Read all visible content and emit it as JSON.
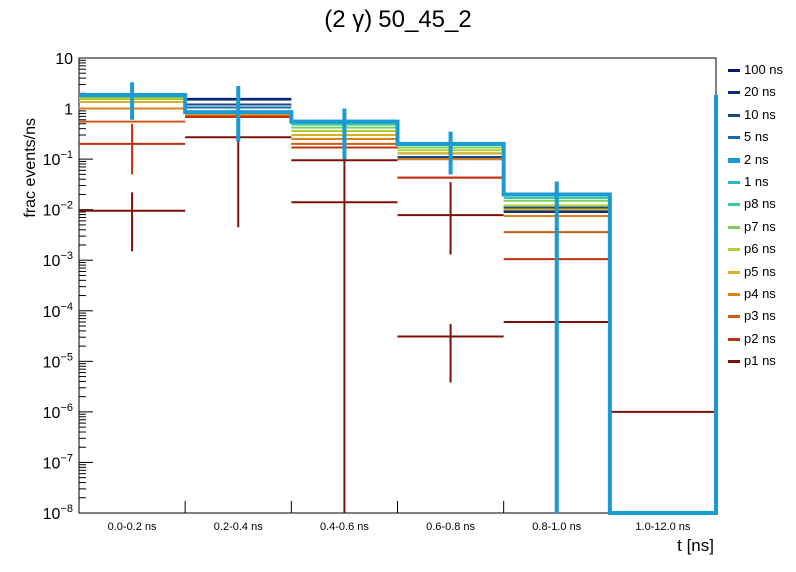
{
  "chart_data": {
    "type": "step-histogram",
    "title": "(2 γ) 50_45_2",
    "title_prefix": "(2 γ)",
    "title_main": "50_45_2",
    "xlabel": "t [ns]",
    "ylabel": "frac events/ns",
    "yscale": "log",
    "ylim": [
      1e-08,
      10
    ],
    "y_ticks": [
      {
        "base": "10",
        "exp": "",
        "value": 10
      },
      {
        "base": "1",
        "exp": "",
        "value": 1
      },
      {
        "base": "10",
        "exp": "−1",
        "value": 0.1
      },
      {
        "base": "10",
        "exp": "−2",
        "value": 0.01
      },
      {
        "base": "10",
        "exp": "−3",
        "value": 0.001
      },
      {
        "base": "10",
        "exp": "−4",
        "value": 0.0001
      },
      {
        "base": "10",
        "exp": "−5",
        "value": 1e-05
      },
      {
        "base": "10",
        "exp": "−6",
        "value": 1e-06
      },
      {
        "base": "10",
        "exp": "−7",
        "value": 1e-07
      },
      {
        "base": "10",
        "exp": "−8",
        "value": 1e-08
      }
    ],
    "categories": [
      "0.0-0.2 ns",
      "0.2-0.4 ns",
      "0.4-0.6 ns",
      "0.6-0.8 ns",
      "0.8-1.0 ns",
      "1.0-12.0 ns"
    ],
    "highlight_series": "2 ns",
    "series": [
      {
        "name": "100 ns",
        "color": "#08146e",
        "values": [
          1.55,
          1.55,
          0.57,
          0.105,
          0.0095,
          1e-08
        ]
      },
      {
        "name": "20 ns",
        "color": "#0a2d7a",
        "values": [
          1.55,
          1.5,
          0.56,
          0.1,
          0.009,
          1e-08
        ]
      },
      {
        "name": "10 ns",
        "color": "#154a8a",
        "values": [
          1.6,
          1.2,
          0.55,
          0.11,
          0.011,
          1e-08
        ]
      },
      {
        "name": "5 ns",
        "color": "#1c6aa8",
        "values": [
          1.65,
          1.05,
          0.55,
          0.13,
          0.012,
          1e-08
        ]
      },
      {
        "name": "2 ns",
        "color": "#1c9ad2",
        "values": [
          1.85,
          0.85,
          0.55,
          0.2,
          0.02,
          1e-08
        ],
        "error_high": [
          3.3,
          2.8,
          1.0,
          0.35,
          0.036,
          null
        ],
        "error_low": [
          0.6,
          0.22,
          0.1,
          0.05,
          1e-08,
          null
        ]
      },
      {
        "name": "1 ns",
        "color": "#28b8c0",
        "values": [
          1.9,
          0.8,
          0.52,
          0.2,
          0.019,
          1e-08
        ]
      },
      {
        "name": "p8 ns",
        "color": "#3ec9a0",
        "values": [
          1.85,
          0.8,
          0.48,
          0.19,
          0.017,
          1e-08
        ]
      },
      {
        "name": "p7 ns",
        "color": "#78d05a",
        "values": [
          1.7,
          0.78,
          0.42,
          0.17,
          0.015,
          1e-08
        ]
      },
      {
        "name": "p6 ns",
        "color": "#b4cf32",
        "values": [
          1.55,
          0.76,
          0.36,
          0.15,
          0.012,
          1e-08
        ]
      },
      {
        "name": "p5 ns",
        "color": "#d8b020",
        "values": [
          1.35,
          0.74,
          0.3,
          0.13,
          0.01,
          1e-08
        ]
      },
      {
        "name": "p4 ns",
        "color": "#e08018",
        "values": [
          1.0,
          0.72,
          0.25,
          0.1,
          0.0075,
          1e-08
        ]
      },
      {
        "name": "p3 ns",
        "color": "#d05a12",
        "values": [
          0.55,
          0.7,
          0.2,
          0.043,
          0.0036,
          1e-08
        ]
      },
      {
        "name": "p2 ns",
        "color": "#c0300e",
        "values": [
          0.2,
          0.68,
          0.17,
          0.043,
          0.00105,
          1e-08
        ],
        "error_high": [
          0.5,
          null,
          null,
          null,
          null,
          null
        ],
        "error_low": [
          0.05,
          null,
          null,
          null,
          null,
          null
        ]
      },
      {
        "name": "p1 ns",
        "color": "#7d1008",
        "values": [
          0.0095,
          0.27,
          0.095,
          0.0078,
          6e-05,
          1e-06
        ],
        "error_high": [
          0.022,
          1.0,
          0.5,
          0.035,
          null,
          null
        ],
        "error_low": [
          0.0015,
          0.0045,
          1e-08,
          0.0013,
          null,
          null
        ]
      },
      {
        "name": "p1 ns (low)",
        "color": "#7d1008",
        "legend": false,
        "values": [
          null,
          null,
          0.014,
          3.1e-05,
          null,
          null
        ],
        "error_high": [
          null,
          null,
          null,
          5.5e-05,
          null,
          null
        ],
        "error_low": [
          null,
          null,
          null,
          3.8e-06,
          null,
          null
        ]
      }
    ]
  }
}
